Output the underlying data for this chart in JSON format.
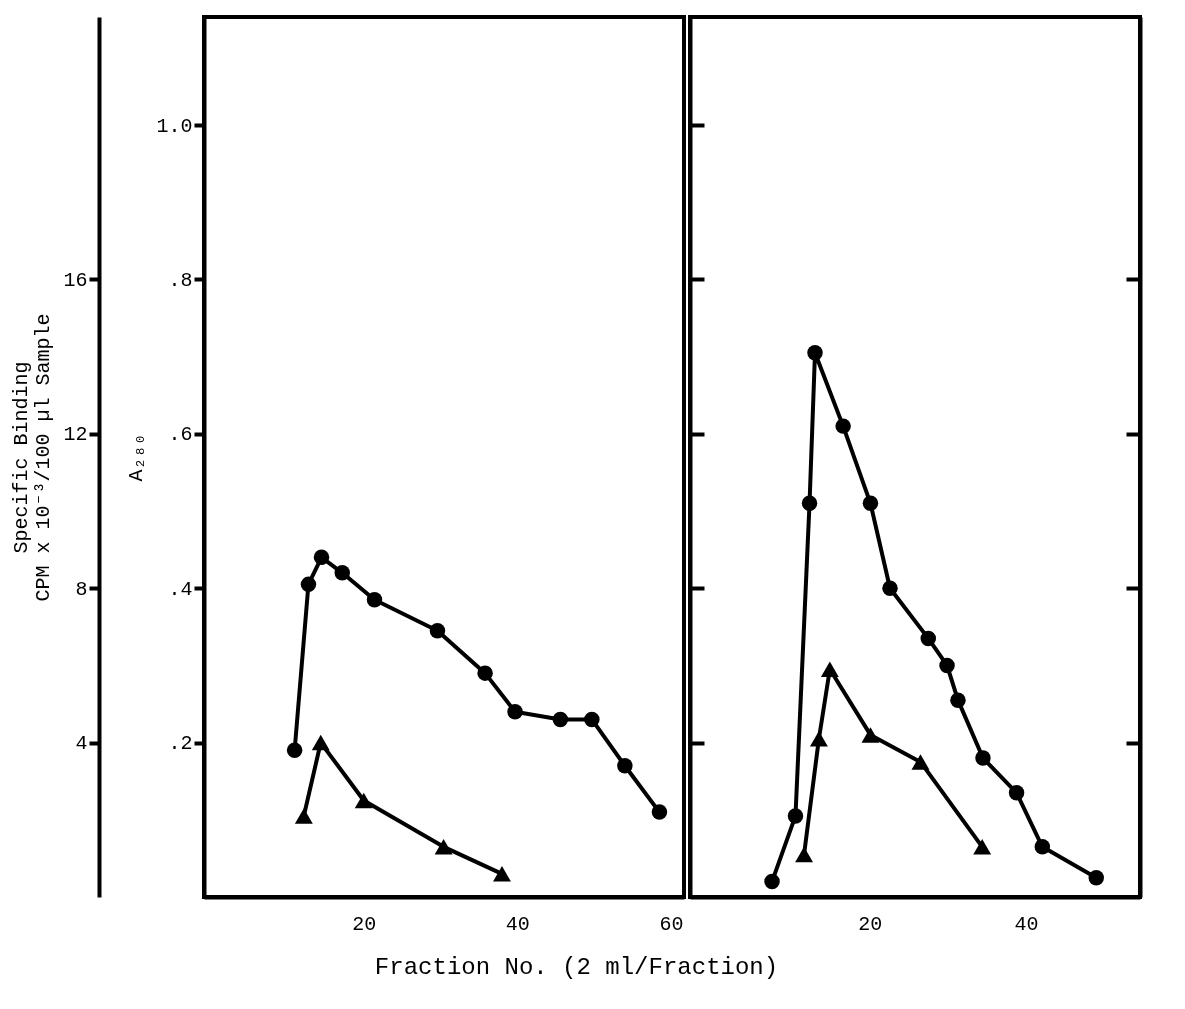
{
  "chart_data": [
    {
      "type": "line",
      "xlabel": "Fraction No. (2 ml/Fraction)",
      "ylabel": "A₂₈₀",
      "y2label": "Specific Binding\nCPM x 10⁻³/100 µl Sample",
      "xlim": [
        -0.8,
        61.7
      ],
      "xticks": [
        20,
        40,
        60
      ],
      "ylim": [
        0,
        1.14
      ],
      "yticks": [
        {
          "value": 0.2,
          "label": ".2"
        },
        {
          "value": 0.4,
          "label": ".4"
        },
        {
          "value": 0.6,
          "label": ".6"
        },
        {
          "value": 0.8,
          "label": ".8"
        },
        {
          "value": 1.0,
          "label": "1.0"
        }
      ],
      "y2lim": [
        0,
        22.8
      ],
      "y2ticks": [
        4,
        8,
        12,
        16
      ],
      "grid": false,
      "series": [
        {
          "color": "#000000",
          "marker": "circle",
          "x": [
            11.0,
            12.8,
            14.5,
            17.2,
            21.4,
            29.6,
            35.8,
            39.7,
            45.6,
            49.7,
            54.0,
            58.5
          ],
          "values": [
            0.19,
            0.405,
            0.44,
            0.42,
            0.385,
            0.345,
            0.29,
            0.24,
            0.23,
            0.23,
            0.17,
            0.11
          ]
        },
        {
          "color": "#000000",
          "marker": "triangle",
          "axis": "y2",
          "x": [
            12.2,
            14.4,
            20.0,
            30.4,
            38.0
          ],
          "values": [
            2.1,
            4.0,
            2.5,
            1.3,
            0.6
          ]
        }
      ]
    },
    {
      "type": "line",
      "xlim": [
        -3,
        54.6
      ],
      "xticks": [
        20,
        40
      ],
      "ylim": [
        0,
        1.14
      ],
      "yticks": [
        0.2,
        0.4,
        0.6,
        0.8,
        1.0
      ],
      "y2lim": [
        0,
        22.8
      ],
      "y2ticks": [
        4,
        8,
        12,
        16
      ],
      "tick_labels": "x",
      "grid": false,
      "series": [
        {
          "color": "#000000",
          "marker": "circle",
          "x": [
            7.5,
            10.5,
            12.3,
            13.0,
            16.6,
            20.1,
            22.6,
            27.5,
            29.9,
            31.3,
            34.5,
            38.8,
            42.1,
            49.0
          ],
          "values": [
            0.02,
            0.105,
            0.51,
            0.705,
            0.61,
            0.51,
            0.4,
            0.335,
            0.3,
            0.255,
            0.18,
            0.135,
            0.065,
            0.025
          ]
        },
        {
          "color": "#000000",
          "marker": "triangle",
          "axis": "y2",
          "x": [
            11.6,
            13.5,
            14.9,
            20.1,
            26.5,
            34.4
          ],
          "values": [
            1.1,
            4.1,
            5.9,
            4.2,
            3.5,
            1.3
          ]
        }
      ]
    }
  ]
}
